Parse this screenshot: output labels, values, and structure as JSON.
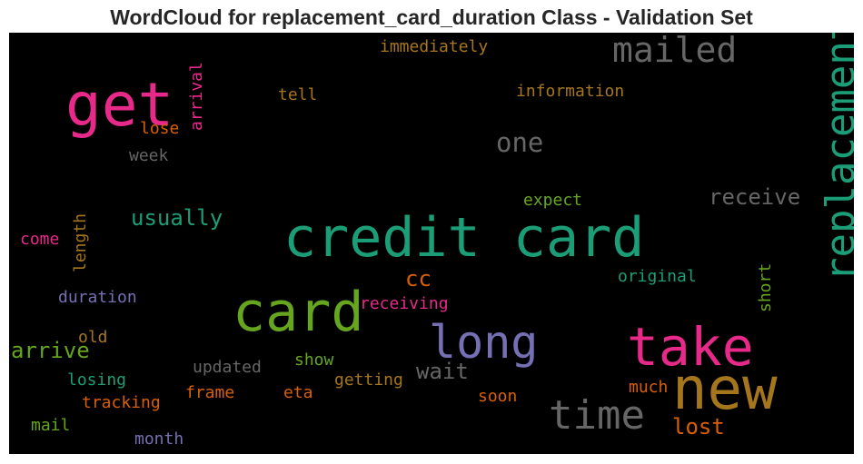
{
  "title": "WordCloud for replacement_card_duration Class - Validation Set",
  "chart_data": {
    "type": "wordcloud",
    "background": "#000000",
    "words": [
      {
        "text": "credit card",
        "weight": 100,
        "color": "#1b9e77",
        "orientation": "horizontal"
      },
      {
        "text": "card",
        "weight": 76,
        "color": "#66a61e",
        "orientation": "horizontal"
      },
      {
        "text": "new",
        "weight": 80,
        "color": "#a6761d",
        "orientation": "horizontal"
      },
      {
        "text": "take",
        "weight": 72,
        "color": "#e7298a",
        "orientation": "horizontal"
      },
      {
        "text": "get",
        "weight": 78,
        "color": "#e7298a",
        "orientation": "horizontal"
      },
      {
        "text": "long",
        "weight": 64,
        "color": "#7570b3",
        "orientation": "horizontal"
      },
      {
        "text": "time",
        "weight": 55,
        "color": "#666666",
        "orientation": "horizontal"
      },
      {
        "text": "replacement",
        "weight": 48,
        "color": "#1b9e77",
        "orientation": "vertical"
      },
      {
        "text": "mailed",
        "weight": 45,
        "color": "#666666",
        "orientation": "horizontal"
      },
      {
        "text": "one",
        "weight": 36,
        "color": "#666666",
        "orientation": "horizontal"
      },
      {
        "text": "receive",
        "weight": 32,
        "color": "#666666",
        "orientation": "horizontal"
      },
      {
        "text": "usually",
        "weight": 32,
        "color": "#1b9e77",
        "orientation": "horizontal"
      },
      {
        "text": "cc",
        "weight": 32,
        "color": "#d95f02",
        "orientation": "horizontal"
      },
      {
        "text": "lost",
        "weight": 30,
        "color": "#d95f02",
        "orientation": "horizontal"
      },
      {
        "text": "arrive",
        "weight": 29,
        "color": "#66a61e",
        "orientation": "horizontal"
      },
      {
        "text": "wait",
        "weight": 29,
        "color": "#666666",
        "orientation": "horizontal"
      },
      {
        "text": "immediately",
        "weight": 25,
        "color": "#a6761d",
        "orientation": "horizontal"
      },
      {
        "text": "information",
        "weight": 25,
        "color": "#a6761d",
        "orientation": "horizontal"
      },
      {
        "text": "tell",
        "weight": 24,
        "color": "#a6761d",
        "orientation": "horizontal"
      },
      {
        "text": "lose",
        "weight": 24,
        "color": "#d95f02",
        "orientation": "horizontal"
      },
      {
        "text": "week",
        "weight": 24,
        "color": "#666666",
        "orientation": "horizontal"
      },
      {
        "text": "arrival",
        "weight": 24,
        "color": "#e7298a",
        "orientation": "vertical"
      },
      {
        "text": "expect",
        "weight": 24,
        "color": "#66a61e",
        "orientation": "horizontal"
      },
      {
        "text": "length",
        "weight": 24,
        "color": "#a6761d",
        "orientation": "vertical"
      },
      {
        "text": "come",
        "weight": 23,
        "color": "#e7298a",
        "orientation": "horizontal"
      },
      {
        "text": "original",
        "weight": 23,
        "color": "#1b9e77",
        "orientation": "horizontal"
      },
      {
        "text": "short",
        "weight": 23,
        "color": "#66a61e",
        "orientation": "vertical"
      },
      {
        "text": "duration",
        "weight": 23,
        "color": "#7570b3",
        "orientation": "horizontal"
      },
      {
        "text": "receiving",
        "weight": 23,
        "color": "#e7298a",
        "orientation": "horizontal"
      },
      {
        "text": "old",
        "weight": 23,
        "color": "#a6761d",
        "orientation": "horizontal"
      },
      {
        "text": "show",
        "weight": 23,
        "color": "#66a61e",
        "orientation": "horizontal"
      },
      {
        "text": "updated",
        "weight": 23,
        "color": "#666666",
        "orientation": "horizontal"
      },
      {
        "text": "getting",
        "weight": 23,
        "color": "#a6761d",
        "orientation": "horizontal"
      },
      {
        "text": "losing",
        "weight": 23,
        "color": "#1b9e77",
        "orientation": "horizontal"
      },
      {
        "text": "frame",
        "weight": 23,
        "color": "#d95f02",
        "orientation": "horizontal"
      },
      {
        "text": "eta",
        "weight": 23,
        "color": "#d95f02",
        "orientation": "horizontal"
      },
      {
        "text": "much",
        "weight": 23,
        "color": "#d95f02",
        "orientation": "horizontal"
      },
      {
        "text": "tracking",
        "weight": 23,
        "color": "#d95f02",
        "orientation": "horizontal"
      },
      {
        "text": "soon",
        "weight": 23,
        "color": "#d95f02",
        "orientation": "horizontal"
      },
      {
        "text": "mail",
        "weight": 23,
        "color": "#66a61e",
        "orientation": "horizontal"
      },
      {
        "text": "month",
        "weight": 23,
        "color": "#7570b3",
        "orientation": "horizontal"
      }
    ]
  }
}
